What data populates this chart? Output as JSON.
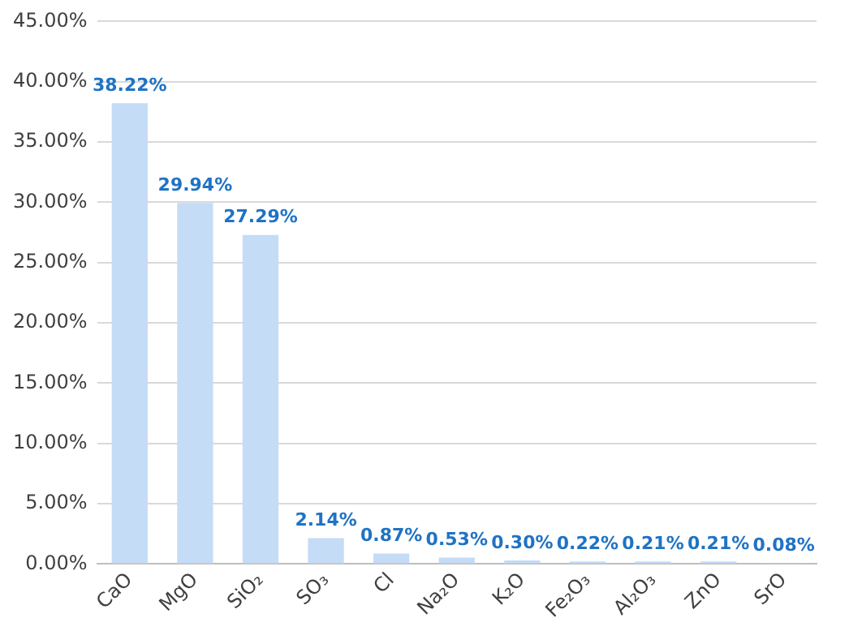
{
  "chart_data": {
    "type": "bar",
    "categories": [
      "CaO",
      "MgO",
      "SiO₂",
      "SO₃",
      "Cl",
      "Na₂O",
      "K₂O",
      "Fe₂O₃",
      "Al₂O₃",
      "ZnO",
      "SrO"
    ],
    "values": [
      38.22,
      29.94,
      27.29,
      2.14,
      0.87,
      0.53,
      0.3,
      0.22,
      0.21,
      0.21,
      0.08
    ],
    "value_labels": [
      "38.22%",
      "29.94%",
      "27.29%",
      "2.14%",
      "0.87%",
      "0.53%",
      "0.30%",
      "0.22%",
      "0.21%",
      "0.21%",
      "0.08%"
    ],
    "color": "#c5dcf7",
    "ylim": [
      0,
      45
    ],
    "yticks": [
      {
        "value": 0,
        "label": "0.00%"
      },
      {
        "value": 5,
        "label": "5.00%"
      },
      {
        "value": 10,
        "label": "10.00%"
      },
      {
        "value": 15,
        "label": "15.00%"
      },
      {
        "value": 20,
        "label": "20.00%"
      },
      {
        "value": 25,
        "label": "25.00%"
      },
      {
        "value": 30,
        "label": "30.00%"
      },
      {
        "value": 35,
        "label": "35.00%"
      },
      {
        "value": 40,
        "label": "40.00%"
      },
      {
        "value": 45,
        "label": "45.00%"
      }
    ],
    "grid": "y",
    "legend": false
  }
}
